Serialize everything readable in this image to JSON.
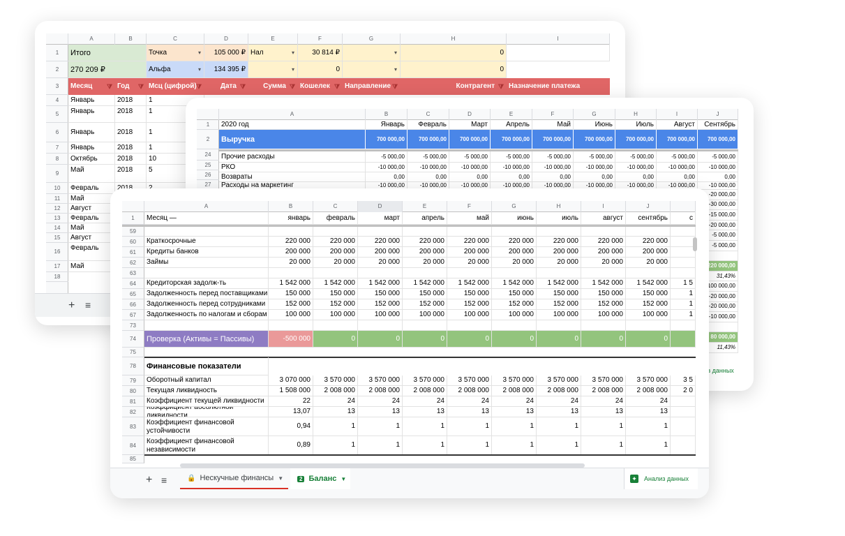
{
  "back": {
    "cols": [
      "A",
      "B",
      "C",
      "D",
      "E",
      "F",
      "G",
      "H",
      "I"
    ],
    "rows": [
      "1",
      "2",
      "3",
      "4",
      "5",
      "6",
      "7",
      "8",
      "9",
      "10",
      "11",
      "12",
      "13",
      "14",
      "15",
      "16",
      "17",
      "18"
    ],
    "r1": {
      "a": "Итого",
      "c": "Точка",
      "d": "105 000 ₽",
      "e": "Нал",
      "f": "30 814 ₽",
      "h": "0"
    },
    "r2": {
      "a": "270 209 ₽",
      "c": "Альфа",
      "d": "134 395 ₽",
      "f": "0",
      "h": "0"
    },
    "headers": [
      "Месяц",
      "Год",
      "Мсц (цифрой)",
      "Дата",
      "Сумма",
      "Кошелек",
      "Направление",
      "Контрагент",
      "Назначение платежа"
    ],
    "data": [
      [
        "Январь",
        "2018",
        "1"
      ],
      [
        "Январь",
        "2018",
        "1"
      ],
      [
        "Январь",
        "2018",
        "1"
      ],
      [
        "Январь",
        "2018",
        "1"
      ],
      [
        "Октябрь",
        "2018",
        "10"
      ],
      [
        "Май",
        "2018",
        "5"
      ],
      [
        "Февраль",
        "2018",
        "2"
      ],
      [
        "Май",
        "",
        ""
      ],
      [
        "Август",
        "",
        ""
      ],
      [
        "Февраль",
        "",
        ""
      ],
      [
        "Май",
        "",
        ""
      ],
      [
        "Август",
        "",
        ""
      ],
      [
        "Февраль",
        "",
        ""
      ],
      [
        "Май",
        "",
        ""
      ]
    ],
    "tab_add": "+",
    "tab_menu": "≡"
  },
  "middle": {
    "cols": [
      "A",
      "B",
      "C",
      "D",
      "E",
      "F",
      "G",
      "H",
      "I",
      "J"
    ],
    "rows": [
      "1",
      "2",
      "24",
      "25",
      "26",
      "27"
    ],
    "year_label": "2020 год",
    "months": [
      "Январь",
      "Февраль",
      "Март",
      "Апрель",
      "Май",
      "Июнь",
      "Июль",
      "Август",
      "Сентябрь"
    ],
    "revenue_label": "Выручка",
    "revenue_values": [
      "700 000,00",
      "700 000,00",
      "700 000,00",
      "700 000,00",
      "700 000,00",
      "700 000,00",
      "700 000,00",
      "700 000,00",
      "700 000,00"
    ],
    "lines": [
      {
        "label": "Прочие расходы",
        "value": "-5 000,00"
      },
      {
        "label": "РКО",
        "value": "-10 000,00"
      },
      {
        "label": "Возвраты",
        "value": "0,00"
      },
      {
        "label": "Расходы на маркетинг",
        "value": "-10 000,00"
      }
    ],
    "right_column": [
      "-20 000,00",
      "-30 000,00",
      "-15 000,00",
      "-20 000,00",
      "-5 000,00",
      "-5 000,00",
      "",
      "220 000,00",
      "31,43%",
      "-100 000,00",
      "-20 000,00",
      "-20 000,00",
      "-10 000,00",
      "",
      "80 000,00",
      "11,43%"
    ],
    "footer_link": "з данных"
  },
  "front": {
    "cols": [
      "A",
      "B",
      "C",
      "D",
      "E",
      "F",
      "G",
      "H",
      "I",
      "J",
      ""
    ],
    "header_label": "Месяц —",
    "months": [
      "январь",
      "февраль",
      "март",
      "апрель",
      "май",
      "июнь",
      "июль",
      "август",
      "сентябрь",
      "с"
    ],
    "rows": [
      {
        "n": "59",
        "label": "",
        "vals": []
      },
      {
        "n": "60",
        "label": "Краткосрочные",
        "vals": [
          "220 000",
          "220 000",
          "220 000",
          "220 000",
          "220 000",
          "220 000",
          "220 000",
          "220 000",
          "220 000",
          ""
        ]
      },
      {
        "n": "61",
        "label": "Кредиты банков",
        "vals": [
          "200 000",
          "200 000",
          "200 000",
          "200 000",
          "200 000",
          "200 000",
          "200 000",
          "200 000",
          "200 000",
          ""
        ]
      },
      {
        "n": "62",
        "label": "Займы",
        "vals": [
          "20 000",
          "20 000",
          "20 000",
          "20 000",
          "20 000",
          "20 000",
          "20 000",
          "20 000",
          "20 000",
          ""
        ]
      },
      {
        "n": "63",
        "label": "",
        "vals": []
      },
      {
        "n": "64",
        "label": "Кредиторская задолж-ть",
        "vals": [
          "1 542 000",
          "1 542 000",
          "1 542 000",
          "1 542 000",
          "1 542 000",
          "1 542 000",
          "1 542 000",
          "1 542 000",
          "1 542 000",
          "1 5"
        ]
      },
      {
        "n": "65",
        "label": "Задолженность перед поставщиками",
        "vals": [
          "150 000",
          "150 000",
          "150 000",
          "150 000",
          "150 000",
          "150 000",
          "150 000",
          "150 000",
          "150 000",
          "1"
        ]
      },
      {
        "n": "66",
        "label": "Задолженность перед сотрудниками",
        "vals": [
          "152 000",
          "152 000",
          "152 000",
          "152 000",
          "152 000",
          "152 000",
          "152 000",
          "152 000",
          "152 000",
          "1"
        ]
      },
      {
        "n": "67",
        "label": "Задолженность по налогам и сборам",
        "vals": [
          "100 000",
          "100 000",
          "100 000",
          "100 000",
          "100 000",
          "100 000",
          "100 000",
          "100 000",
          "100 000",
          "1"
        ]
      },
      {
        "n": "73",
        "label": "",
        "vals": []
      }
    ],
    "check": {
      "n": "74",
      "label": "Проверка (Активы = Пассивы)",
      "first": "-500 000",
      "rest": [
        "0",
        "0",
        "0",
        "0",
        "0",
        "0",
        "0",
        "0"
      ]
    },
    "row75": "75",
    "section": {
      "n": "78",
      "label": "Финансовые показатели"
    },
    "ratios": [
      {
        "n": "79",
        "label": "Оборотный капитал",
        "vals": [
          "3 070 000",
          "3 570 000",
          "3 570 000",
          "3 570 000",
          "3 570 000",
          "3 570 000",
          "3 570 000",
          "3 570 000",
          "3 570 000",
          "3 5"
        ]
      },
      {
        "n": "80",
        "label": "Текущая ликвидность",
        "vals": [
          "1 508 000",
          "2 008 000",
          "2 008 000",
          "2 008 000",
          "2 008 000",
          "2 008 000",
          "2 008 000",
          "2 008 000",
          "2 008 000",
          "2 0"
        ]
      },
      {
        "n": "81",
        "label": "Коэффициент текущей ликвидности",
        "vals": [
          "22",
          "24",
          "24",
          "24",
          "24",
          "24",
          "24",
          "24",
          "24",
          ""
        ]
      },
      {
        "n": "82",
        "label": "Коэффициент абсолютной ликвидности",
        "vals": [
          "13,07",
          "13",
          "13",
          "13",
          "13",
          "13",
          "13",
          "13",
          "13",
          ""
        ]
      },
      {
        "n": "83",
        "label": "Коэффициент финансовой устойчивости",
        "vals": [
          "0,94",
          "1",
          "1",
          "1",
          "1",
          "1",
          "1",
          "1",
          "1",
          ""
        ]
      },
      {
        "n": "84",
        "label": "Коэффициент финансовой независимости",
        "vals": [
          "0,89",
          "1",
          "1",
          "1",
          "1",
          "1",
          "1",
          "1",
          "1",
          ""
        ]
      }
    ],
    "row85": "85",
    "tab_add": "+",
    "tab_menu": "≡",
    "tab1": "Нескучные финансы",
    "tab2_num": "2",
    "tab2": "Баланс",
    "explore": "Анализ данных"
  }
}
